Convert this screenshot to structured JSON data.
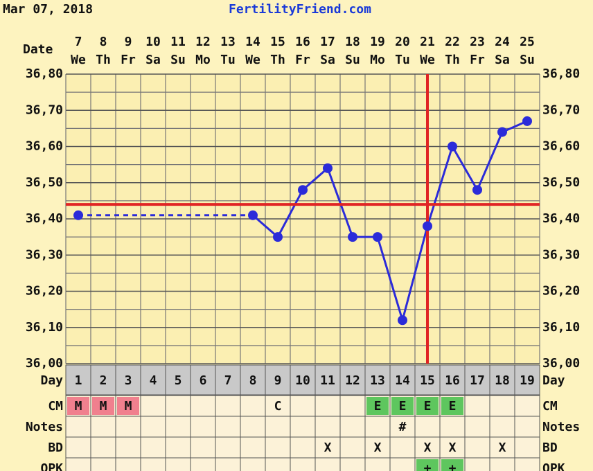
{
  "header": {
    "date": "Mar 07, 2018",
    "site": "FertilityFriend.com"
  },
  "chart_data": {
    "type": "line",
    "x_label": "Date",
    "categories": [
      "7",
      "8",
      "9",
      "10",
      "11",
      "12",
      "13",
      "14",
      "15",
      "16",
      "17",
      "18",
      "19",
      "20",
      "21",
      "22",
      "23",
      "24",
      "25"
    ],
    "weekdays": [
      "We",
      "Th",
      "Fr",
      "Sa",
      "Su",
      "Mo",
      "Tu",
      "We",
      "Th",
      "Fr",
      "Sa",
      "Su",
      "Mo",
      "Tu",
      "We",
      "Th",
      "Fr",
      "Sa",
      "Su"
    ],
    "values": [
      36.41,
      null,
      null,
      null,
      null,
      null,
      null,
      36.41,
      36.35,
      36.48,
      36.54,
      36.35,
      36.35,
      36.12,
      36.38,
      36.6,
      36.48,
      36.64,
      36.67
    ],
    "color": "#2b2bd9",
    "coverline": 36.44,
    "ovulation_index": 14,
    "marker_color": "#e02424",
    "ylim": [
      36.0,
      36.8
    ],
    "yticks": [
      {
        "value": 36.0,
        "label": "36,00"
      },
      {
        "value": 36.1,
        "label": "36,10"
      },
      {
        "value": 36.2,
        "label": "36,20"
      },
      {
        "value": 36.3,
        "label": "36,30"
      },
      {
        "value": 36.4,
        "label": "36,40"
      },
      {
        "value": 36.5,
        "label": "36,50"
      },
      {
        "value": 36.6,
        "label": "36,60"
      },
      {
        "value": 36.7,
        "label": "36,70"
      },
      {
        "value": 36.8,
        "label": "36,80"
      }
    ],
    "minor_yticks": [
      36.05,
      36.15,
      36.25,
      36.35,
      36.45,
      36.55,
      36.65,
      36.75
    ],
    "grid": true
  },
  "table": {
    "day_label": "Day",
    "days": [
      1,
      2,
      3,
      4,
      5,
      6,
      7,
      8,
      9,
      10,
      11,
      12,
      13,
      14,
      15,
      16,
      17,
      18,
      19
    ],
    "cell_colors": {
      "M": "#f0808e",
      "E": "#5ec65e",
      "+": "#5ec65e"
    },
    "rows": [
      {
        "label": "CM",
        "cells": [
          "M",
          "M",
          "M",
          null,
          null,
          null,
          null,
          null,
          "C",
          null,
          null,
          null,
          "E",
          "E",
          "E",
          "E",
          null,
          null,
          null
        ]
      },
      {
        "label": "Notes",
        "cells": [
          null,
          null,
          null,
          null,
          null,
          null,
          null,
          null,
          null,
          null,
          null,
          null,
          null,
          "#",
          null,
          null,
          null,
          null,
          null
        ]
      },
      {
        "label": "BD",
        "cells": [
          null,
          null,
          null,
          null,
          null,
          null,
          null,
          null,
          null,
          null,
          "X",
          null,
          "X",
          null,
          "X",
          "X",
          null,
          "X",
          null
        ]
      },
      {
        "label": "OPK",
        "cells": [
          null,
          null,
          null,
          null,
          null,
          null,
          null,
          null,
          null,
          null,
          null,
          null,
          null,
          null,
          "+",
          "+",
          null,
          null,
          null
        ]
      }
    ]
  }
}
